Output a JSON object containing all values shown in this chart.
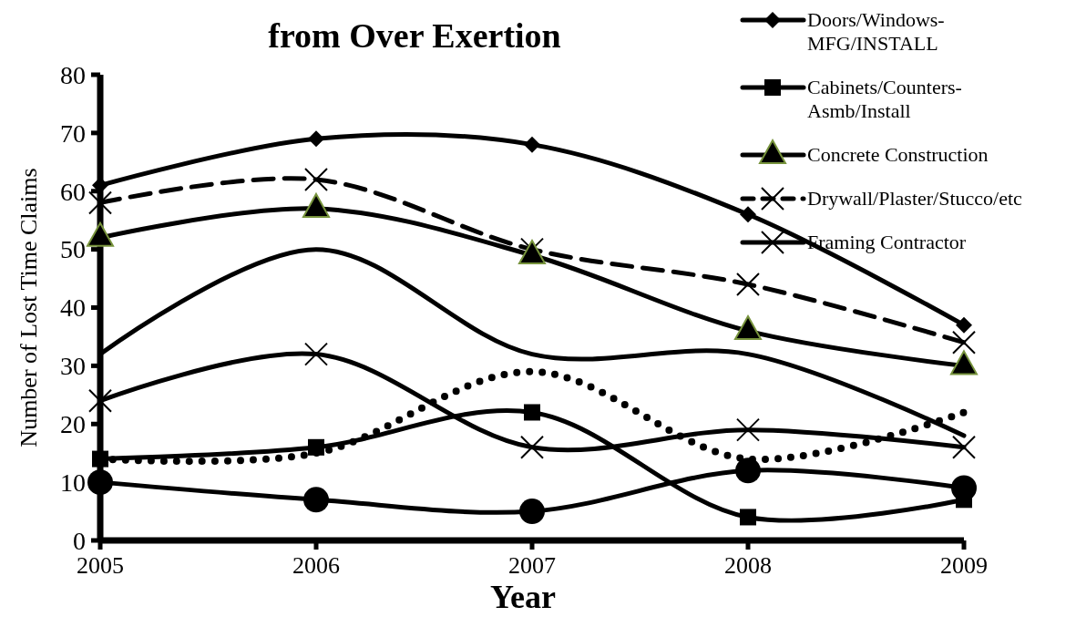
{
  "chart_data": {
    "type": "line",
    "title": "from Over Exertion",
    "xlabel": "Year",
    "ylabel": "Number of Lost Time Claims",
    "categories": [
      "2005",
      "2006",
      "2007",
      "2008",
      "2009"
    ],
    "ylim": [
      0,
      80
    ],
    "yticks": [
      0,
      10,
      20,
      30,
      40,
      50,
      60,
      70,
      80
    ],
    "grid": false,
    "legend": "top right",
    "series": [
      {
        "name": "Doors/Windows-MFG/INSTALL",
        "color": "#000000",
        "marker": "diamond",
        "line_style": "solid",
        "values": [
          61,
          69,
          68,
          56,
          37
        ]
      },
      {
        "name": "Cabinets/Counters-Asmb/Install",
        "color": "#000000",
        "marker": "square",
        "line_style": "solid",
        "values": [
          14,
          16,
          22,
          4,
          7
        ]
      },
      {
        "name": "Concrete Construction",
        "color": "#000000",
        "marker": "triangle",
        "line_style": "solid",
        "values": [
          52,
          57,
          49,
          36,
          30
        ]
      },
      {
        "name": "Drywall/Plaster/Stucco/etc",
        "color": "#000000",
        "marker": "cross",
        "line_style": "dashed",
        "values": [
          58,
          62,
          50,
          44,
          34
        ]
      },
      {
        "name": "Framing Contractor",
        "color": "#000000",
        "marker": "cross",
        "line_style": "solid",
        "values": [
          24,
          32,
          16,
          19,
          16
        ]
      },
      {
        "color": "#000000",
        "marker": "none",
        "line_style": "solid",
        "values": [
          32,
          50,
          32,
          32,
          18
        ]
      },
      {
        "color": "#000000",
        "marker": "none",
        "line_style": "dotted",
        "values": [
          14,
          15,
          29,
          14,
          22
        ]
      },
      {
        "color": "#000000",
        "marker": "circle",
        "line_style": "solid",
        "values": [
          10,
          7,
          5,
          12,
          9
        ]
      }
    ]
  }
}
